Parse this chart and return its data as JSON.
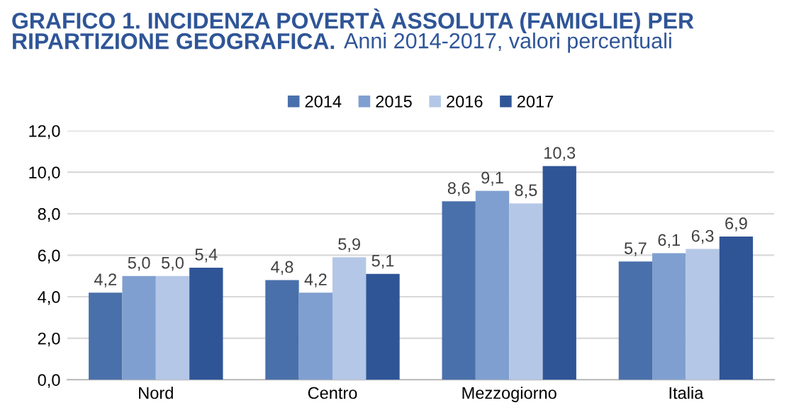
{
  "chart_data": {
    "type": "bar",
    "title": "GRAFICO 1. INCIDENZA POVERTÀ ASSOLUTA (FAMIGLIE) PER RIPARTIZIONE GEOGRAFICA.",
    "subtitle": "Anni 2014-2017, valori percentuali",
    "categories": [
      "Nord",
      "Centro",
      "Mezzogiorno",
      "Italia"
    ],
    "series": [
      {
        "name": "2014",
        "color": "#4a70ab",
        "values": [
          4.2,
          4.8,
          8.6,
          5.7
        ],
        "value_labels": [
          "4,2",
          "4,8",
          "8,6",
          "5,7"
        ]
      },
      {
        "name": "2015",
        "color": "#7f9fd0",
        "values": [
          5.0,
          4.2,
          9.1,
          6.1
        ],
        "value_labels": [
          "5,0",
          "4,2",
          "9,1",
          "6,1"
        ]
      },
      {
        "name": "2016",
        "color": "#b4c7e7",
        "values": [
          5.0,
          5.9,
          8.5,
          6.3
        ],
        "value_labels": [
          "5,0",
          "5,9",
          "8,5",
          "6,3"
        ]
      },
      {
        "name": "2017",
        "color": "#2f5597",
        "values": [
          5.4,
          5.1,
          10.3,
          6.9
        ],
        "value_labels": [
          "5,4",
          "5,1",
          "10,3",
          "6,9"
        ]
      }
    ],
    "ylim": [
      0,
      12
    ],
    "yticks": [
      {
        "value": 0,
        "label": "0,0"
      },
      {
        "value": 2,
        "label": "2,0"
      },
      {
        "value": 4,
        "label": "4,0"
      },
      {
        "value": 6,
        "label": "6,0"
      },
      {
        "value": 8,
        "label": "8,0"
      },
      {
        "value": 10,
        "label": "10,0"
      },
      {
        "value": 12,
        "label": "12,0"
      }
    ],
    "grid": "y",
    "legend": "top"
  }
}
